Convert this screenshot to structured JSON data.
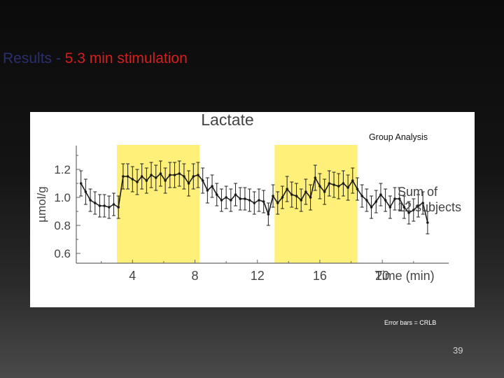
{
  "slide": {
    "title_prefix": "Results - ",
    "title_highlight": "5.3 min stimulation",
    "note": "Error bars = CRLB",
    "page_number": "39"
  },
  "colors": {
    "title_prefix": "#2a2f6e",
    "title_highlight": "#d41f1f",
    "stimulation_band": "#fff07a",
    "line": "#1a1a1a"
  },
  "chart_data": {
    "type": "line",
    "title": "Lactate",
    "subtitle": "Group Analysis",
    "xlabel": "Time (min)",
    "ylabel": "µmol/g",
    "annotation": "Sum of 12 subjects",
    "xlim": [
      0.4,
      24.7
    ],
    "ylim": [
      0.53,
      1.39
    ],
    "xticks": [
      4,
      8,
      12,
      16,
      20
    ],
    "yticks": [
      "0.6",
      "0.8",
      "1.0",
      "1.2"
    ],
    "stimulation_periods": [
      [
        3.0,
        8.3
      ],
      [
        13.1,
        18.4
      ]
    ],
    "grid": false,
    "series": [
      {
        "name": "",
        "x": [
          0.7,
          1.0,
          1.3,
          1.6,
          1.9,
          2.2,
          2.5,
          2.8,
          3.1,
          3.4,
          3.7,
          4.0,
          4.3,
          4.6,
          4.9,
          5.2,
          5.5,
          5.8,
          6.1,
          6.4,
          6.7,
          7.0,
          7.3,
          7.6,
          7.9,
          8.2,
          8.5,
          8.8,
          9.1,
          9.4,
          9.7,
          10.0,
          10.3,
          10.6,
          10.9,
          11.2,
          11.5,
          11.8,
          12.1,
          12.4,
          12.7,
          13.0,
          13.3,
          13.6,
          13.9,
          14.2,
          14.5,
          14.8,
          15.1,
          15.4,
          15.7,
          16.0,
          16.3,
          16.6,
          16.9,
          17.2,
          17.5,
          17.8,
          18.1,
          18.4,
          18.7,
          19.0,
          19.3,
          19.6,
          19.9,
          20.2,
          20.5,
          20.8,
          21.1,
          21.4,
          21.7,
          22.0,
          22.3,
          22.6,
          22.9
        ],
        "y": [
          1.1,
          1.04,
          0.98,
          0.96,
          0.94,
          0.94,
          0.93,
          0.95,
          0.93,
          1.15,
          1.15,
          1.13,
          1.11,
          1.15,
          1.12,
          1.16,
          1.14,
          1.17,
          1.12,
          1.16,
          1.16,
          1.17,
          1.15,
          1.1,
          1.15,
          1.16,
          1.12,
          1.05,
          1.08,
          1.02,
          0.98,
          1.0,
          0.98,
          1.02,
          0.99,
          0.99,
          0.98,
          0.96,
          0.98,
          0.97,
          0.88,
          1.01,
          0.96,
          1.0,
          1.06,
          1.02,
          1.01,
          0.98,
          1.04,
          1.0,
          1.14,
          1.08,
          1.04,
          1.1,
          1.09,
          1.08,
          1.1,
          1.07,
          1.12,
          1.06,
          1.01,
          0.98,
          0.93,
          0.97,
          1.02,
          0.98,
          0.93,
          0.99,
          0.99,
          0.93,
          0.89,
          0.91,
          0.94,
          0.96,
          0.82
        ],
        "err": [
          0.09,
          0.09,
          0.08,
          0.08,
          0.08,
          0.08,
          0.08,
          0.08,
          0.08,
          0.09,
          0.09,
          0.09,
          0.09,
          0.09,
          0.09,
          0.09,
          0.09,
          0.09,
          0.09,
          0.09,
          0.09,
          0.09,
          0.09,
          0.09,
          0.09,
          0.09,
          0.09,
          0.09,
          0.08,
          0.08,
          0.08,
          0.08,
          0.08,
          0.08,
          0.08,
          0.08,
          0.08,
          0.08,
          0.08,
          0.08,
          0.08,
          0.08,
          0.08,
          0.08,
          0.09,
          0.09,
          0.09,
          0.08,
          0.09,
          0.09,
          0.09,
          0.09,
          0.09,
          0.09,
          0.09,
          0.09,
          0.09,
          0.09,
          0.09,
          0.08,
          0.08,
          0.08,
          0.08,
          0.08,
          0.08,
          0.08,
          0.08,
          0.08,
          0.08,
          0.08,
          0.08,
          0.08,
          0.08,
          0.08,
          0.08
        ]
      }
    ]
  }
}
